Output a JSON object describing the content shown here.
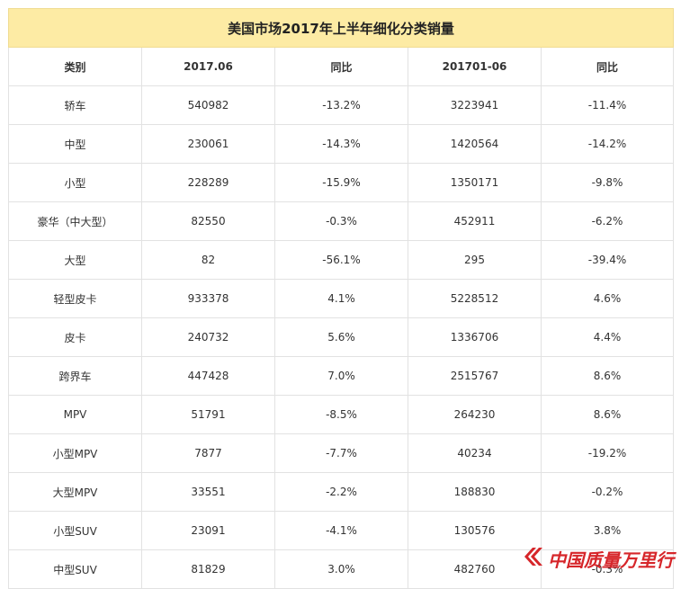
{
  "table": {
    "title": "美国市场2017年上半年细化分类销量",
    "headers": [
      "类别",
      "2017.06",
      "同比",
      "201701-06",
      "同比"
    ],
    "rows": [
      [
        "轿车",
        "540982",
        "-13.2%",
        "3223941",
        "-11.4%"
      ],
      [
        "中型",
        "230061",
        "-14.3%",
        "1420564",
        "-14.2%"
      ],
      [
        "小型",
        "228289",
        "-15.9%",
        "1350171",
        "-9.8%"
      ],
      [
        "豪华（中大型）",
        "82550",
        "-0.3%",
        "452911",
        "-6.2%"
      ],
      [
        "大型",
        "82",
        "-56.1%",
        "295",
        "-39.4%"
      ],
      [
        "轻型皮卡",
        "933378",
        "4.1%",
        "5228512",
        "4.6%"
      ],
      [
        "皮卡",
        "240732",
        "5.6%",
        "1336706",
        "4.4%"
      ],
      [
        "跨界车",
        "447428",
        "7.0%",
        "2515767",
        "8.6%"
      ],
      [
        "MPV",
        "51791",
        "-8.5%",
        "264230",
        "8.6%"
      ],
      [
        "小型MPV",
        "7877",
        "-7.7%",
        "40234",
        "-19.2%"
      ],
      [
        "大型MPV",
        "33551",
        "-2.2%",
        "188830",
        "-0.2%"
      ],
      [
        "小型SUV",
        "23091",
        "-4.1%",
        "130576",
        "3.8%"
      ],
      [
        "中型SUV",
        "81829",
        "3.0%",
        "482760",
        "-0.3%"
      ]
    ]
  },
  "watermark": {
    "text": "中国质量万里行",
    "icon": "chevron-logo-icon",
    "color": "#d6262a"
  }
}
